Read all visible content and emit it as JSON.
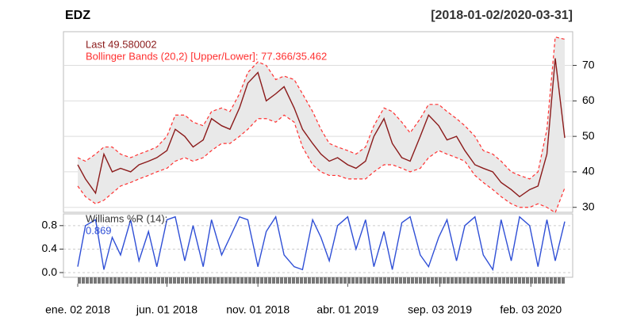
{
  "chart_data": [
    {
      "type": "line",
      "title": "EDZ",
      "subtitle": "[2018-01-02/2020-03-31]",
      "annotations": [
        "Last 49.580002",
        "Bollinger Bands (20,2) [Upper/Lower]: 77.366/35.462"
      ],
      "x": [
        "2018-01-02",
        "2018-01-15",
        "2018-02-01",
        "2018-02-15",
        "2018-03-01",
        "2018-03-15",
        "2018-04-01",
        "2018-04-15",
        "2018-05-01",
        "2018-05-15",
        "2018-06-01",
        "2018-06-15",
        "2018-07-01",
        "2018-07-15",
        "2018-08-01",
        "2018-08-15",
        "2018-09-01",
        "2018-09-15",
        "2018-10-01",
        "2018-10-15",
        "2018-11-01",
        "2018-11-15",
        "2018-12-01",
        "2018-12-15",
        "2019-01-01",
        "2019-01-15",
        "2019-02-01",
        "2019-02-15",
        "2019-03-01",
        "2019-03-15",
        "2019-04-01",
        "2019-04-15",
        "2019-05-01",
        "2019-05-15",
        "2019-06-01",
        "2019-06-15",
        "2019-07-01",
        "2019-07-15",
        "2019-08-01",
        "2019-08-15",
        "2019-09-01",
        "2019-09-15",
        "2019-10-01",
        "2019-10-15",
        "2019-11-01",
        "2019-11-15",
        "2019-12-01",
        "2019-12-15",
        "2020-01-01",
        "2020-01-15",
        "2020-02-01",
        "2020-02-15",
        "2020-03-01",
        "2020-03-15",
        "2020-03-31"
      ],
      "series": [
        {
          "color": "#8b1a1a",
          "values": [
            42,
            38,
            34,
            45,
            40,
            41,
            40,
            42,
            43,
            44,
            46,
            52,
            50,
            47,
            49,
            55,
            53,
            52,
            58,
            65,
            68,
            60,
            62,
            64,
            58,
            52,
            48,
            45,
            43,
            44,
            42,
            41,
            43,
            50,
            55,
            48,
            44,
            43,
            50,
            56,
            53,
            49,
            50,
            46,
            42,
            41,
            40,
            37,
            35,
            33,
            35,
            36,
            45,
            72,
            49.58
          ]
        },
        {
          "color": "#ff3030",
          "values": [
            44,
            43,
            45,
            47,
            47,
            45,
            44,
            45,
            46,
            47,
            50,
            56,
            56,
            54,
            53,
            57,
            58,
            57,
            62,
            68,
            71,
            70,
            66,
            67,
            66,
            62,
            57,
            52,
            48,
            47,
            46,
            45,
            47,
            53,
            58,
            57,
            54,
            51,
            55,
            59,
            59,
            57,
            55,
            53,
            50,
            46,
            45,
            43,
            40,
            39,
            38,
            40,
            52,
            78,
            77.366
          ]
        },
        {
          "color": "#ff3030",
          "values": [
            36,
            33,
            31,
            32,
            34,
            36,
            37,
            38,
            39,
            40,
            41,
            43,
            44,
            43,
            44,
            46,
            48,
            48,
            50,
            52,
            55,
            55,
            54,
            56,
            54,
            47,
            42,
            40,
            39,
            39,
            38,
            38,
            38,
            40,
            42,
            42,
            41,
            40,
            41,
            44,
            46,
            45,
            44,
            43,
            39,
            37,
            35,
            33,
            31,
            30,
            30,
            31,
            30,
            28.5,
            35.462
          ]
        }
      ],
      "ylim": [
        28.6,
        79.5
      ],
      "yticks": [
        30,
        40,
        50,
        60,
        70
      ],
      "xticks": [
        {
          "value": "2018-01-02",
          "label": "ene. 02 2018"
        },
        {
          "value": "2018-06-01",
          "label": "jun. 01 2018"
        },
        {
          "value": "2018-11-01",
          "label": "nov. 01 2018"
        },
        {
          "value": "2019-04-01",
          "label": "abr. 01 2019"
        },
        {
          "value": "2019-09-03",
          "label": "sep. 03 2019"
        },
        {
          "value": "2020-02-03",
          "label": "feb. 03 2020"
        }
      ],
      "grid": true
    },
    {
      "type": "line",
      "annotations": [
        "Williams %R (14):",
        "0.869"
      ],
      "x": [
        "2018-01-02",
        "2018-01-15",
        "2018-02-01",
        "2018-02-15",
        "2018-03-01",
        "2018-03-15",
        "2018-04-01",
        "2018-04-15",
        "2018-05-01",
        "2018-05-15",
        "2018-06-01",
        "2018-06-15",
        "2018-07-01",
        "2018-07-15",
        "2018-08-01",
        "2018-08-15",
        "2018-09-01",
        "2018-09-15",
        "2018-10-01",
        "2018-10-15",
        "2018-11-01",
        "2018-11-15",
        "2018-12-01",
        "2018-12-15",
        "2019-01-01",
        "2019-01-15",
        "2019-02-01",
        "2019-02-15",
        "2019-03-01",
        "2019-03-15",
        "2019-04-01",
        "2019-04-15",
        "2019-05-01",
        "2019-05-15",
        "2019-06-01",
        "2019-06-15",
        "2019-07-01",
        "2019-07-15",
        "2019-08-01",
        "2019-08-15",
        "2019-09-01",
        "2019-09-15",
        "2019-10-01",
        "2019-10-15",
        "2019-11-01",
        "2019-11-15",
        "2019-12-01",
        "2019-12-15",
        "2020-01-01",
        "2020-01-15",
        "2020-02-01",
        "2020-02-15",
        "2020-03-01",
        "2020-03-15",
        "2020-03-31"
      ],
      "series": [
        {
          "color": "#2f4fd6",
          "values": [
            0.1,
            0.8,
            0.9,
            0.05,
            0.6,
            0.3,
            0.9,
            0.2,
            0.7,
            0.1,
            0.9,
            0.95,
            0.2,
            0.8,
            0.1,
            0.9,
            0.3,
            0.6,
            0.95,
            0.9,
            0.1,
            0.7,
            0.95,
            0.3,
            0.1,
            0.05,
            0.9,
            0.6,
            0.2,
            0.8,
            0.95,
            0.4,
            0.9,
            0.1,
            0.7,
            0.05,
            0.85,
            0.95,
            0.3,
            0.1,
            0.6,
            0.9,
            0.2,
            0.8,
            0.95,
            0.3,
            0.05,
            0.9,
            0.2,
            0.95,
            0.8,
            0.1,
            0.9,
            0.2,
            0.869
          ]
        }
      ],
      "ylim": [
        -0.08,
        1.0
      ],
      "yticks": [
        {
          "value": 0,
          "label": "0.0"
        },
        0.4,
        0.8
      ],
      "grid": true
    }
  ]
}
